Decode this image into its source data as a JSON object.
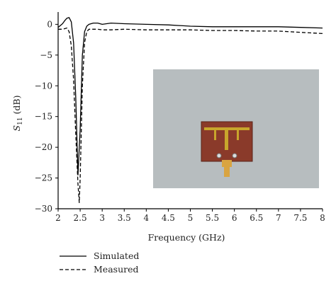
{
  "chart_data": {
    "type": "line",
    "title": "",
    "xlabel": "Frequency (GHz)",
    "ylabel_main": "S",
    "ylabel_sub": "11",
    "ylabel_unit": " (dB)",
    "xlim": [
      2,
      8
    ],
    "ylim": [
      -30,
      2
    ],
    "x_ticks": [
      2,
      2.5,
      3,
      3.5,
      4,
      4.5,
      5,
      5.5,
      6,
      6.5,
      7,
      7.5,
      8
    ],
    "x_tick_labels": [
      "2",
      "2.5",
      "3",
      "3.5",
      "4",
      "4.5",
      "5",
      "5.5",
      "6",
      "6.5",
      "7",
      "7.5",
      "8"
    ],
    "y_ticks": [
      0,
      -5,
      -10,
      -15,
      -20,
      -25,
      -30
    ],
    "y_tick_labels": [
      "0",
      "−5",
      "−10",
      "−15",
      "−20",
      "−25",
      "−30"
    ],
    "grid": false,
    "legend_position": "bottom-left",
    "series": [
      {
        "name": "Simulated",
        "style": "solid",
        "color": "#000000",
        "x": [
          2.0,
          2.1,
          2.15,
          2.2,
          2.25,
          2.3,
          2.35,
          2.4,
          2.45,
          2.5,
          2.55,
          2.6,
          2.65,
          2.7,
          2.8,
          2.9,
          3.0,
          3.1,
          3.2,
          3.5,
          4.0,
          4.5,
          5.0,
          5.5,
          6.0,
          6.5,
          7.0,
          7.5,
          8.0
        ],
        "y": [
          -0.5,
          0.1,
          0.6,
          1.0,
          1.1,
          0.4,
          -3.0,
          -12.0,
          -24.5,
          -17.0,
          -5.0,
          -1.2,
          -0.3,
          0.0,
          0.2,
          0.2,
          0.0,
          0.1,
          0.2,
          0.1,
          0.0,
          -0.1,
          -0.3,
          -0.4,
          -0.4,
          -0.4,
          -0.4,
          -0.5,
          -0.6
        ]
      },
      {
        "name": "Measured",
        "style": "dashed",
        "color": "#000000",
        "x": [
          2.0,
          2.1,
          2.2,
          2.25,
          2.3,
          2.35,
          2.4,
          2.45,
          2.48,
          2.5,
          2.55,
          2.6,
          2.65,
          2.7,
          2.8,
          2.9,
          3.0,
          3.2,
          3.5,
          4.0,
          4.5,
          5.0,
          5.5,
          6.0,
          6.5,
          7.0,
          7.5,
          8.0
        ],
        "y": [
          -0.8,
          -0.8,
          -0.6,
          -1.2,
          -3.5,
          -9.0,
          -18.0,
          -26.0,
          -29.0,
          -25.0,
          -10.0,
          -3.0,
          -1.2,
          -0.8,
          -0.8,
          -0.8,
          -0.9,
          -0.9,
          -0.8,
          -0.9,
          -0.9,
          -0.9,
          -1.0,
          -1.0,
          -1.1,
          -1.1,
          -1.3,
          -1.5
        ]
      }
    ],
    "inset_photo": {
      "description_color_bg": "#b7bdbf",
      "board_color": "#8a3a2a",
      "trace_color": "#c8a62c",
      "connector_color": "#d9a441"
    }
  }
}
